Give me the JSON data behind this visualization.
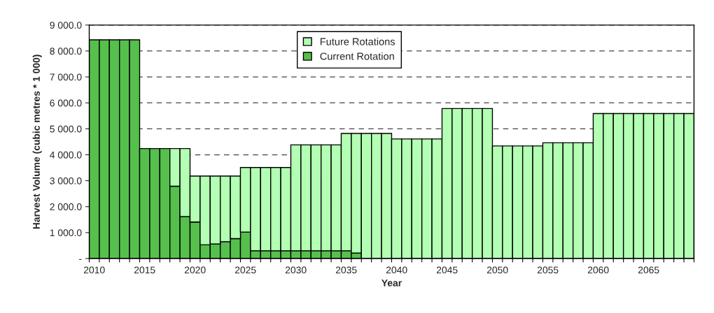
{
  "chart_data": {
    "type": "bar",
    "stacked": true,
    "xlabel": "Year",
    "ylabel": "Harvest Volume (cubic metres * 1 000)",
    "categories": [
      "2010",
      null,
      null,
      null,
      null,
      "2015",
      null,
      null,
      null,
      null,
      "2020",
      null,
      null,
      null,
      null,
      "2025",
      null,
      null,
      null,
      null,
      "2030",
      null,
      null,
      null,
      null,
      "2035",
      null,
      null,
      null,
      null,
      "2040",
      null,
      null,
      null,
      null,
      "2045",
      null,
      null,
      null,
      null,
      "2050",
      null,
      null,
      null,
      null,
      "2055",
      null,
      null,
      null,
      null,
      "2060",
      null,
      null,
      null,
      null,
      "2065",
      null,
      null,
      null,
      null
    ],
    "series": [
      {
        "name": "Current Rotation",
        "color": "#55c04c",
        "values": [
          8430,
          8430,
          8430,
          8430,
          8430,
          4240,
          4240,
          4240,
          2790,
          1620,
          1410,
          530,
          560,
          650,
          770,
          1020,
          300,
          300,
          300,
          300,
          300,
          300,
          300,
          300,
          300,
          300,
          210,
          null,
          null,
          null,
          null,
          null,
          null,
          null,
          null,
          null,
          null,
          null,
          null,
          null,
          null,
          null,
          null,
          null,
          null,
          null,
          null,
          null,
          null,
          null,
          null,
          null,
          null,
          null,
          null,
          null,
          null,
          null,
          null,
          null
        ]
      },
      {
        "name": "Future Rotations",
        "color": "#b3ffb3",
        "values": [
          null,
          null,
          null,
          null,
          null,
          null,
          null,
          null,
          1450,
          2620,
          1770,
          2650,
          2620,
          2530,
          2410,
          2490,
          3210,
          3210,
          3210,
          3210,
          4080,
          4080,
          4080,
          4080,
          4080,
          4520,
          4610,
          4820,
          4820,
          4820,
          4610,
          4610,
          4610,
          4610,
          4610,
          5780,
          5780,
          5780,
          5780,
          5780,
          4340,
          4340,
          4340,
          4340,
          4340,
          4460,
          4460,
          4460,
          4460,
          4460,
          5590,
          5590,
          5590,
          5590,
          5590,
          5590,
          5590,
          5590,
          5590,
          5590
        ]
      }
    ],
    "ylim": [
      0,
      9000
    ],
    "yticks": [
      {
        "value": 0,
        "label": "-"
      },
      {
        "value": 1000,
        "label": "1 000.0"
      },
      {
        "value": 2000,
        "label": "2 000.0"
      },
      {
        "value": 3000,
        "label": "3 000.0"
      },
      {
        "value": 4000,
        "label": "4 000.0"
      },
      {
        "value": 5000,
        "label": "5 000.0"
      },
      {
        "value": 6000,
        "label": "6 000.0"
      },
      {
        "value": 7000,
        "label": "7 000.0"
      },
      {
        "value": 8000,
        "label": "8 000.0"
      },
      {
        "value": 9000,
        "label": "9 000.0"
      }
    ],
    "grid": "y",
    "legend": "top"
  }
}
